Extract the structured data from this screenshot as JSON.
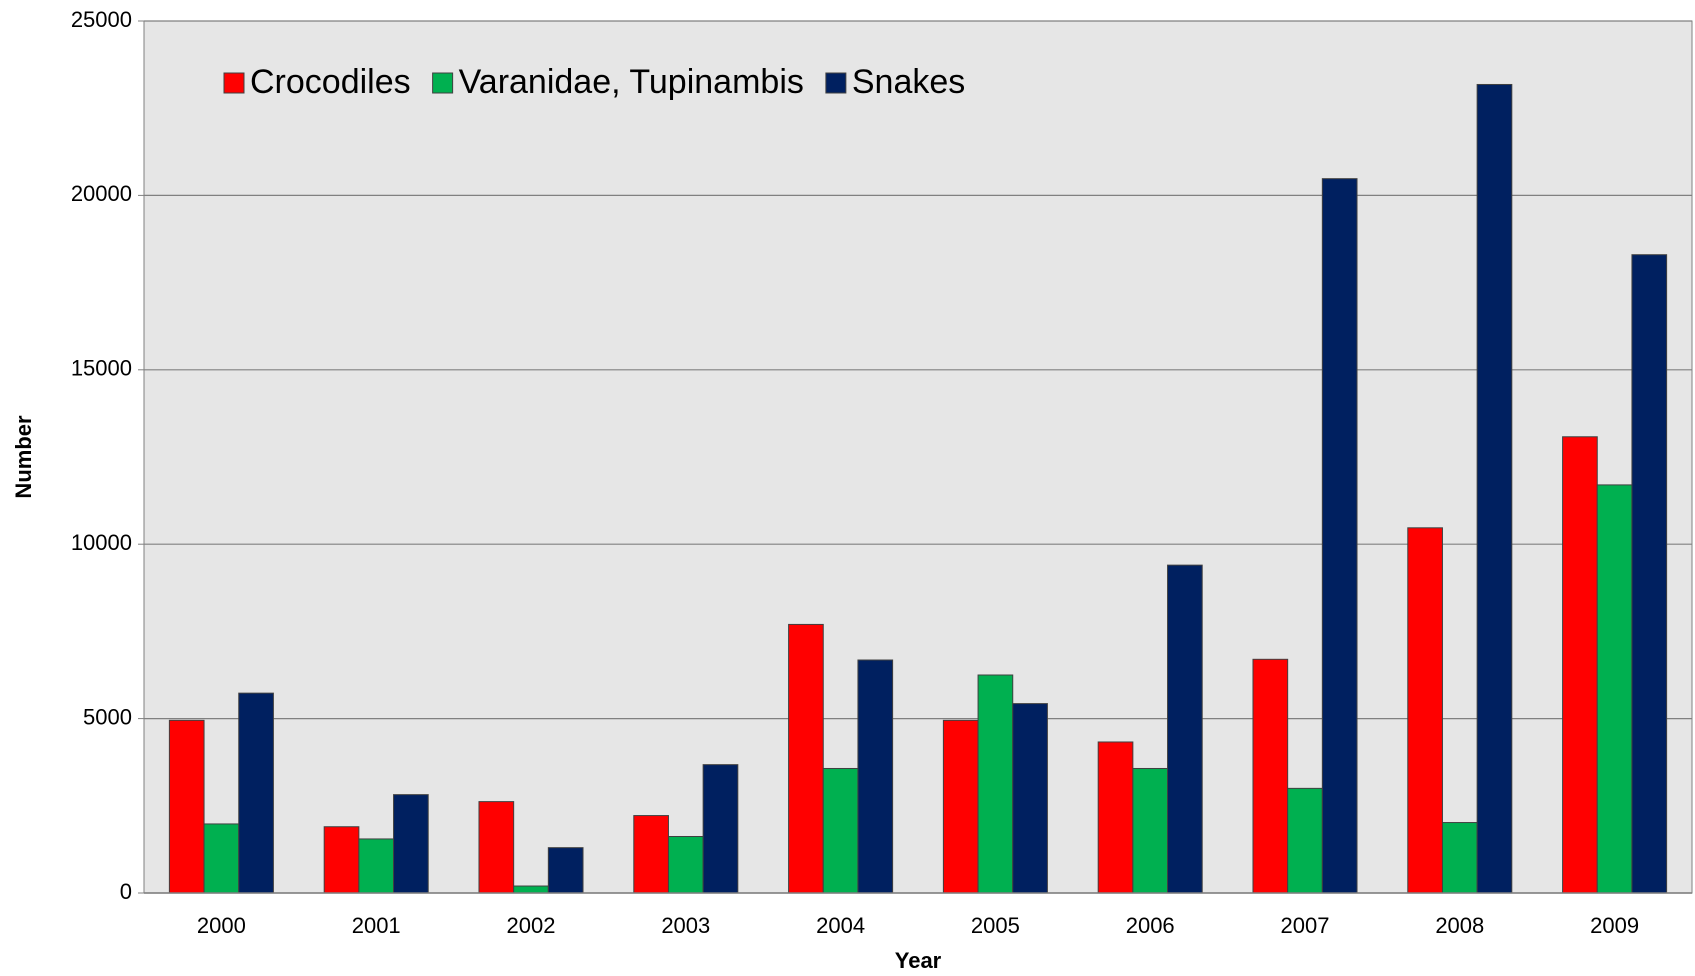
{
  "chart_data": {
    "type": "bar",
    "x_label": "Year",
    "y_label": "Number",
    "categories": [
      "2000",
      "2001",
      "2002",
      "2003",
      "2004",
      "2005",
      "2006",
      "2007",
      "2008",
      "2009"
    ],
    "series": [
      {
        "name": "Crocodiles",
        "color": "#ff0000",
        "values": [
          4950,
          1900,
          2620,
          2220,
          7700,
          4950,
          4330,
          6700,
          10470,
          13080
        ]
      },
      {
        "name": "Varanidae, Tupinambis",
        "color": "#00b050",
        "values": [
          1980,
          1550,
          200,
          1620,
          3570,
          6250,
          3570,
          3000,
          2020,
          11700
        ]
      },
      {
        "name": "Snakes",
        "color": "#002060",
        "values": [
          5730,
          2820,
          1300,
          3680,
          6680,
          5430,
          9400,
          20480,
          23180,
          18300
        ]
      }
    ],
    "ylim": [
      0,
      25000
    ],
    "yticks": [
      0,
      5000,
      10000,
      15000,
      20000,
      25000
    ],
    "grid": true,
    "legend": "top-left",
    "background": "#e6e6e6"
  }
}
